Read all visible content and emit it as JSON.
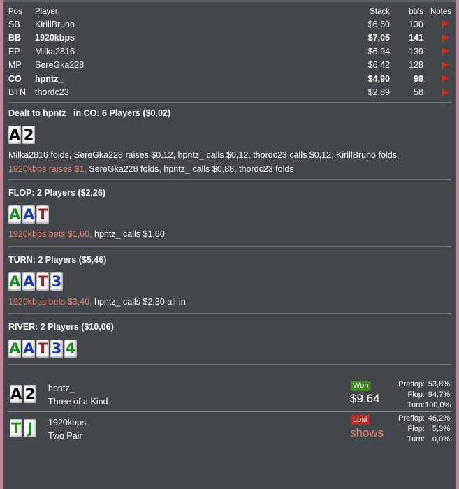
{
  "header": {
    "pos": "Pos",
    "player": "Player",
    "stack": "Stack",
    "bbs": "bb's",
    "notes": "Notes"
  },
  "seats": [
    {
      "pos": "SB",
      "player": "KirillBruno",
      "stack": "$6,50",
      "bbs": "130",
      "bold": false
    },
    {
      "pos": "BB",
      "player": "1920kbps",
      "stack": "$7,05",
      "bbs": "141",
      "bold": true
    },
    {
      "pos": "EP",
      "player": "Milka2816",
      "stack": "$6,94",
      "bbs": "139",
      "bold": false
    },
    {
      "pos": "MP",
      "player": "SereGka228",
      "stack": "$6,42",
      "bbs": "128",
      "bold": false
    },
    {
      "pos": "CO",
      "player": "hpntz_",
      "stack": "$4,90",
      "bbs": "98",
      "bold": true
    },
    {
      "pos": "BTN",
      "player": "thordc23",
      "stack": "$2,89",
      "bbs": "58",
      "bold": false
    }
  ],
  "preflop": {
    "title": "Dealt to hpntz_ in CO: 6 Players ($0,02)",
    "cards": [
      {
        "r": "A",
        "s": "black"
      },
      {
        "r": "2",
        "s": "black"
      }
    ],
    "actions1": "Milka2816 folds, SereGka228 raises $0,12, hpntz_ calls $0,12, thordc23 calls $0,12, KirillBruno folds,",
    "actions2_red": "1920kbps raises $1,",
    "actions2": " SereGka228 folds, hpntz_ calls $0,88, thordc23 folds"
  },
  "flop": {
    "title": "FLOP: 2 Players ($2,26)",
    "cards": [
      {
        "r": "A",
        "s": "green"
      },
      {
        "r": "A",
        "s": "blue"
      },
      {
        "r": "T",
        "s": "red"
      }
    ],
    "action_red": "1920kbps bets $1,60,",
    "action": " hpntz_ calls $1,60"
  },
  "turn": {
    "title": "TURN: 2 Players ($5,46)",
    "cards": [
      {
        "r": "A",
        "s": "green"
      },
      {
        "r": "A",
        "s": "blue"
      },
      {
        "r": "T",
        "s": "red"
      },
      {
        "r": "3",
        "s": "blue"
      }
    ],
    "action_red": "1920kbps bets $3,40,",
    "action": " hpntz_ calls $2,30 all-in"
  },
  "river": {
    "title": "RIVER: 2 Players ($10,06)",
    "cards": [
      {
        "r": "A",
        "s": "green"
      },
      {
        "r": "A",
        "s": "blue"
      },
      {
        "r": "T",
        "s": "red"
      },
      {
        "r": "3",
        "s": "blue"
      },
      {
        "r": "4",
        "s": "green"
      }
    ]
  },
  "results": [
    {
      "player": "hpntz_",
      "hand": "Three of a Kind",
      "cards": [
        {
          "r": "A",
          "s": "black"
        },
        {
          "r": "2",
          "s": "black"
        }
      ],
      "badge": "Won",
      "badge_color": "#3a8a1e",
      "amount": "$9,64",
      "amount_color": "#ffffff",
      "equity": [
        [
          "Preflop:",
          "53,8%"
        ],
        [
          "Flop:",
          "94,7%"
        ],
        [
          "Turn:",
          "100,0%"
        ]
      ]
    },
    {
      "player": "1920kbps",
      "hand": "Two Pair",
      "cards": [
        {
          "r": "T",
          "s": "green"
        },
        {
          "r": "J",
          "s": "green"
        }
      ],
      "badge": "Lost",
      "badge_color": "#b8281e",
      "amount": "shows",
      "amount_color": "#e28272",
      "equity": [
        [
          "Preflop:",
          "46,2%"
        ],
        [
          "Flop:",
          "5,3%"
        ],
        [
          "Turn:",
          "0,0%"
        ]
      ]
    }
  ]
}
